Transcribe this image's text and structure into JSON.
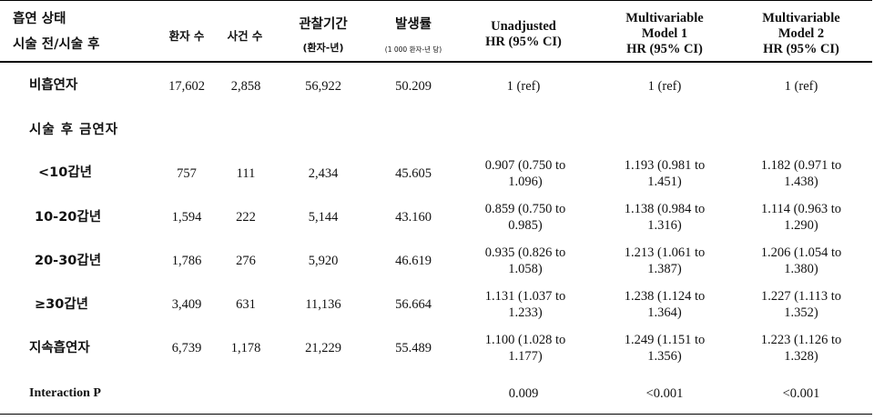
{
  "header": {
    "group_line1": "흡연 상태",
    "group_line2": "시술 전/시술 후",
    "patients": "환자 수",
    "events": "사건 수",
    "followup_line1": "관찰기간",
    "followup_line2": "(환자-년)",
    "incidence_line1": "발생률",
    "incidence_line2": "(1 000 환자-년 당)",
    "unadj_line1": "Unadjusted",
    "unadj_line2": "HR (95% CI)",
    "m1_line1": "Multivariable",
    "m1_line2": "Model 1",
    "m1_line3": "HR (95% CI)",
    "m2_line1": "Multivariable",
    "m2_line2": "Model 2",
    "m2_line3": "HR (95% CI)"
  },
  "rows": [
    {
      "label": "비흡연자",
      "patients": "17,602",
      "events": "2,858",
      "followup": "56,922",
      "incidence": "50.209",
      "unadj": "1 (ref)",
      "m1": "1 (ref)",
      "m2": "1 (ref)"
    },
    {
      "label": "시술 후 금연자"
    },
    {
      "label": "<10갑년",
      "patients": "757",
      "events": "111",
      "followup": "2,434",
      "incidence": "45.605",
      "unadj": "0.907 (0.750 to 1.096)",
      "m1": "1.193 (0.981 to 1.451)",
      "m2": "1.182 (0.971 to 1.438)"
    },
    {
      "label": "10-20갑년",
      "patients": "1,594",
      "events": "222",
      "followup": "5,144",
      "incidence": "43.160",
      "unadj": "0.859 (0.750 to 0.985)",
      "m1": "1.138 (0.984 to 1.316)",
      "m2": "1.114 (0.963 to 1.290)"
    },
    {
      "label": "20-30갑년",
      "patients": "1,786",
      "events": "276",
      "followup": "5,920",
      "incidence": "46.619",
      "unadj": "0.935 (0.826 to 1.058)",
      "m1": "1.213 (1.061 to 1.387)",
      "m2": "1.206 (1.054 to 1.380)"
    },
    {
      "label": "≥30갑년",
      "patients": "3,409",
      "events": "631",
      "followup": "11,136",
      "incidence": "56.664",
      "unadj": "1.131 (1.037 to 1.233)",
      "m1": "1.238 (1.124 to 1.364)",
      "m2": "1.227 (1.113 to 1.352)"
    },
    {
      "label": "지속흡연자",
      "patients": "6,739",
      "events": "1,178",
      "followup": "21,229",
      "incidence": "55.489",
      "unadj": "1.100 (1.028 to 1.177)",
      "m1": "1.249 (1.151 to 1.356)",
      "m2": "1.223 (1.126 to 1.328)"
    },
    {
      "label": "Interaction P",
      "unadj": "0.009",
      "m1": "<0.001",
      "m2": "<0.001"
    }
  ]
}
